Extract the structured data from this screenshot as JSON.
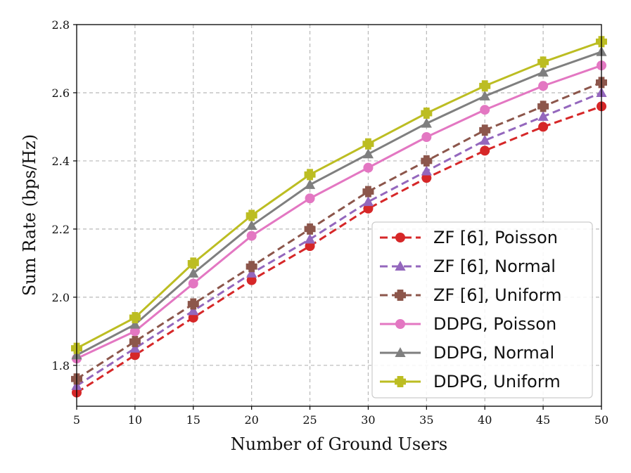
{
  "chart_data": {
    "type": "line",
    "title": "",
    "xlabel": "Number of Ground Users",
    "ylabel": "Sum Rate (bps/Hz)",
    "x": [
      5,
      10,
      15,
      20,
      25,
      30,
      35,
      40,
      45,
      50
    ],
    "xlim": [
      5,
      50
    ],
    "ylim": [
      1.68,
      2.8
    ],
    "xticks": [
      5,
      10,
      15,
      20,
      25,
      30,
      35,
      40,
      45,
      50
    ],
    "xtick_labels": [
      "5",
      "10",
      "15",
      "20",
      "25",
      "30",
      "35",
      "40",
      "45",
      "50"
    ],
    "yticks": [
      1.8,
      2.0,
      2.2,
      2.4,
      2.6,
      2.8
    ],
    "ytick_labels": [
      "1.8",
      "2.0",
      "2.2",
      "2.4",
      "2.6",
      "2.8"
    ],
    "grid": true,
    "legend_position": "lower-right",
    "series": [
      {
        "name": "ZF [6], Poisson",
        "color": "#d62728",
        "marker": "circle",
        "dashed": true,
        "values": [
          1.72,
          1.83,
          1.94,
          2.05,
          2.15,
          2.26,
          2.35,
          2.43,
          2.5,
          2.56
        ]
      },
      {
        "name": "ZF [6], Normal",
        "color": "#9467bd",
        "marker": "triangle",
        "dashed": true,
        "values": [
          1.74,
          1.85,
          1.96,
          2.07,
          2.17,
          2.28,
          2.37,
          2.46,
          2.53,
          2.6
        ]
      },
      {
        "name": "ZF [6], Uniform",
        "color": "#8c564b",
        "marker": "plus",
        "dashed": true,
        "values": [
          1.76,
          1.87,
          1.98,
          2.09,
          2.2,
          2.31,
          2.4,
          2.49,
          2.56,
          2.63
        ]
      },
      {
        "name": "DDPG, Poisson",
        "color": "#e377c2",
        "marker": "circle",
        "dashed": false,
        "values": [
          1.82,
          1.9,
          2.04,
          2.18,
          2.29,
          2.38,
          2.47,
          2.55,
          2.62,
          2.68
        ]
      },
      {
        "name": "DDPG, Normal",
        "color": "#7f7f7f",
        "marker": "triangle",
        "dashed": false,
        "values": [
          1.83,
          1.92,
          2.07,
          2.21,
          2.33,
          2.42,
          2.51,
          2.59,
          2.66,
          2.72
        ]
      },
      {
        "name": "DDPG, Uniform",
        "color": "#bcbd22",
        "marker": "plus",
        "dashed": false,
        "values": [
          1.85,
          1.94,
          2.1,
          2.24,
          2.36,
          2.45,
          2.54,
          2.62,
          2.69,
          2.75
        ]
      }
    ]
  }
}
